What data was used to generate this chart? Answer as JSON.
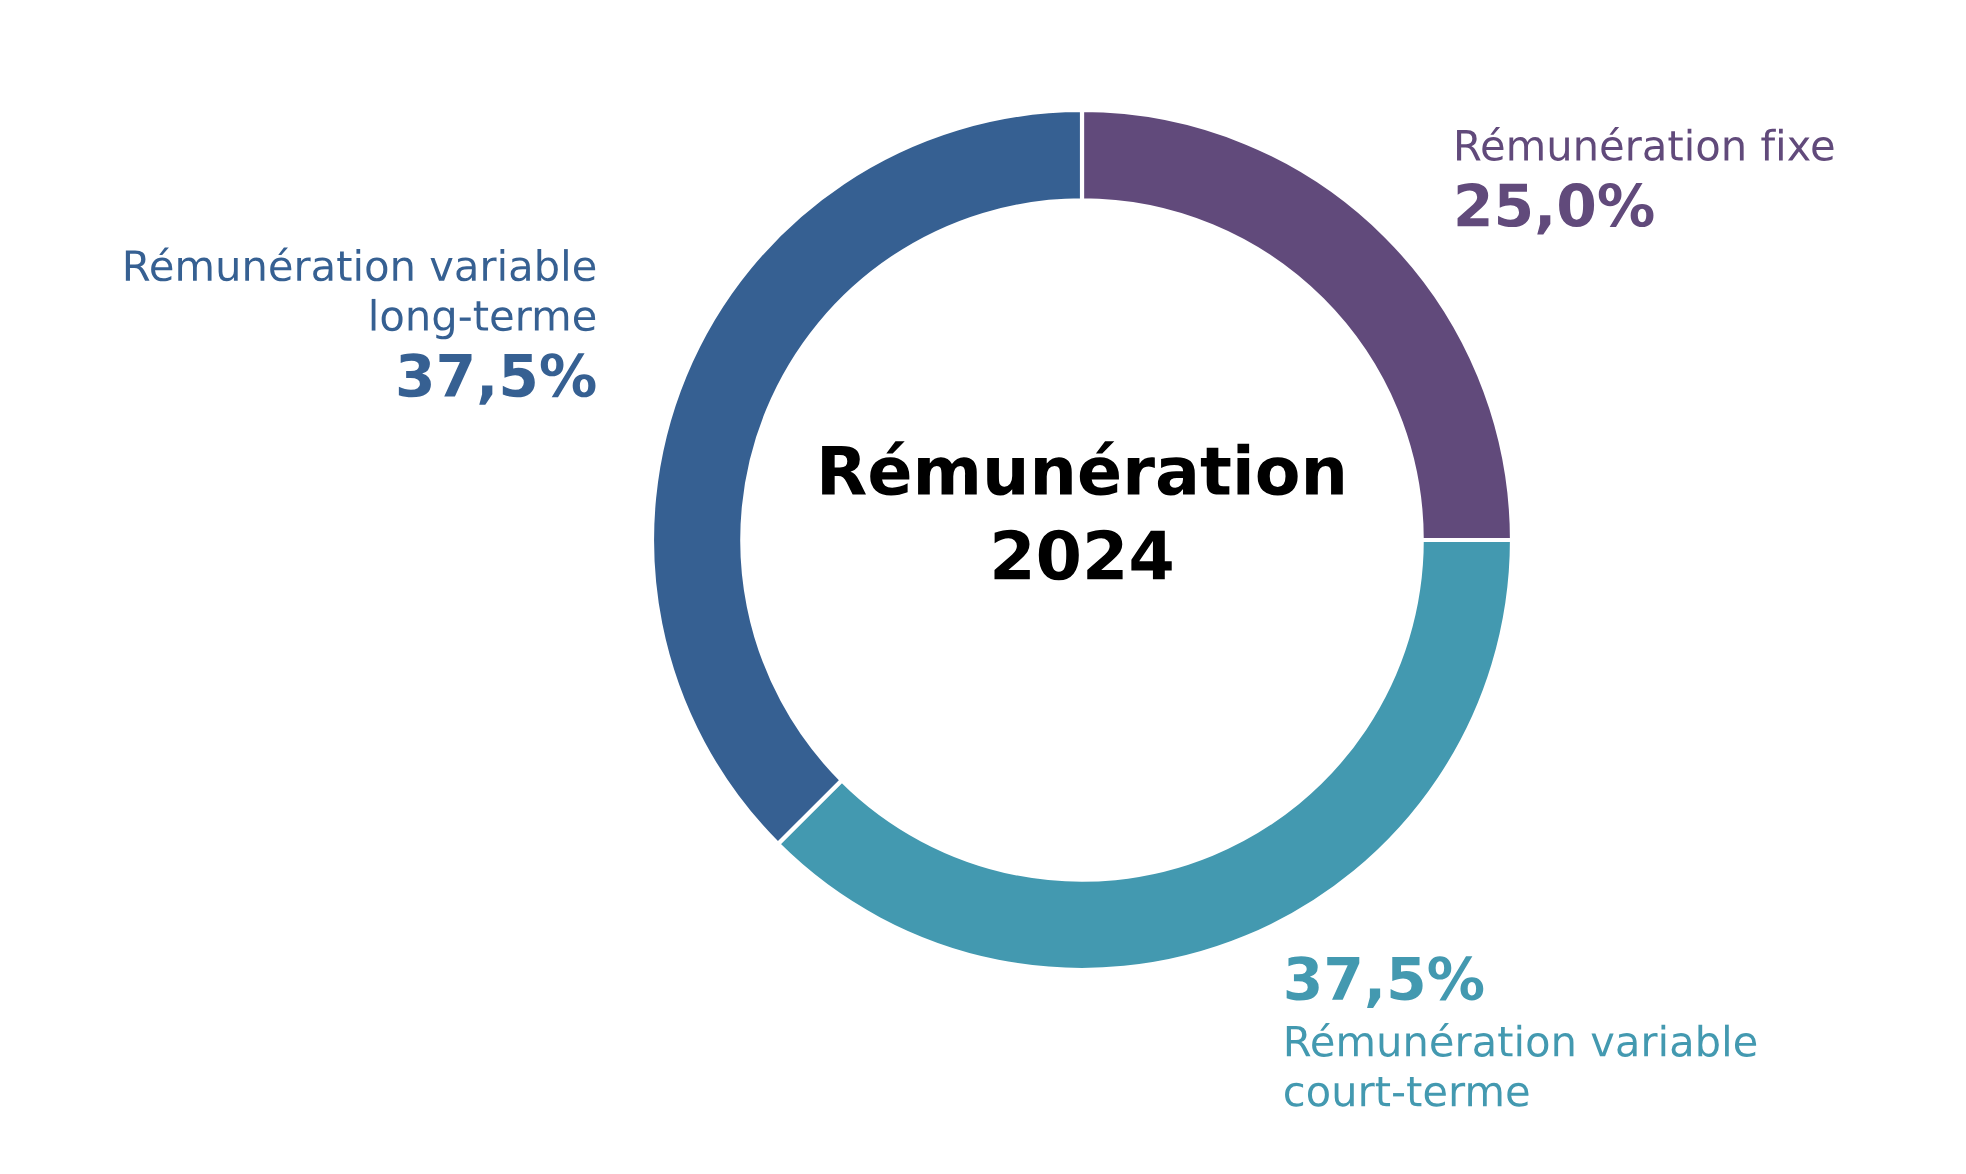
{
  "chart_data": {
    "type": "donut",
    "title": "Rémunération\n2024",
    "categories": [
      "Rémunération fixe",
      "Rémunération variable\ncourt-terme",
      "Rémunération variable\nlong-terme"
    ],
    "values": [
      25.0,
      37.5,
      37.5
    ],
    "colors": [
      "#614a7b",
      "#4399b0",
      "#366092"
    ],
    "value_labels": [
      "25,0%",
      "37,5%",
      "37,5%"
    ],
    "legend": false
  }
}
